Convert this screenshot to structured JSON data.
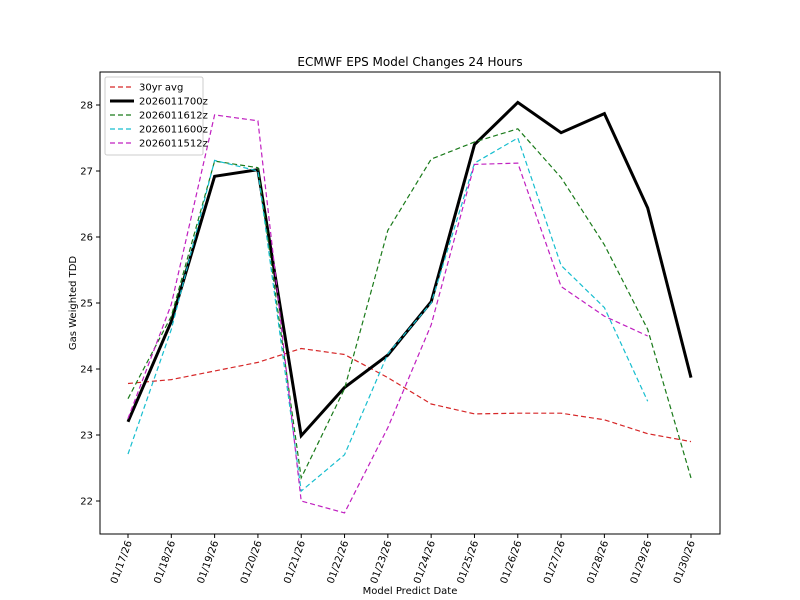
{
  "chart_data": {
    "type": "line",
    "title": "ECMWF EPS Model Changes 24 Hours",
    "xlabel": "Model Predict Date",
    "ylabel": "Gas Weighted TDD",
    "ylim": [
      21.5,
      28.5
    ],
    "yticks": [
      22,
      23,
      24,
      25,
      26,
      27,
      28
    ],
    "legend_position": "upper-left",
    "grid": false,
    "categories": [
      "01/17/26",
      "01/18/26",
      "01/19/26",
      "01/20/26",
      "01/21/26",
      "01/22/26",
      "01/23/26",
      "01/24/26",
      "01/25/26",
      "01/26/26",
      "01/27/26",
      "01/28/26",
      "01/29/26",
      "01/30/26"
    ],
    "series": [
      {
        "name": "30yr avg",
        "color": "#d62728",
        "style": "dashed",
        "values": [
          23.78,
          23.84,
          23.97,
          24.1,
          24.31,
          24.22,
          23.87,
          23.47,
          23.32,
          23.33,
          23.33,
          23.23,
          23.02,
          22.9
        ]
      },
      {
        "name": "2026011700z",
        "color": "#000000",
        "style": "solid",
        "values": [
          23.2,
          24.72,
          26.92,
          27.02,
          22.99,
          23.72,
          24.21,
          25.02,
          27.4,
          28.04,
          27.58,
          27.87,
          26.44,
          23.87
        ]
      },
      {
        "name": "2026011612z",
        "color": "#1a7a1a",
        "style": "dashed",
        "values": [
          23.55,
          24.8,
          27.15,
          27.05,
          22.35,
          23.7,
          26.1,
          27.18,
          27.44,
          27.64,
          26.9,
          25.88,
          24.6,
          22.35
        ]
      },
      {
        "name": "2026011600z",
        "color": "#17becf",
        "style": "dashed",
        "values": [
          22.71,
          24.6,
          27.16,
          27.0,
          22.15,
          22.7,
          24.23,
          25.0,
          27.12,
          27.5,
          25.57,
          24.93,
          23.51,
          null
        ]
      },
      {
        "name": "2026011512z",
        "color": "#c020c0",
        "style": "dashed",
        "values": [
          23.25,
          24.98,
          27.85,
          27.76,
          22.0,
          21.82,
          23.11,
          24.67,
          27.1,
          27.12,
          25.25,
          24.8,
          24.5,
          null
        ]
      }
    ]
  }
}
